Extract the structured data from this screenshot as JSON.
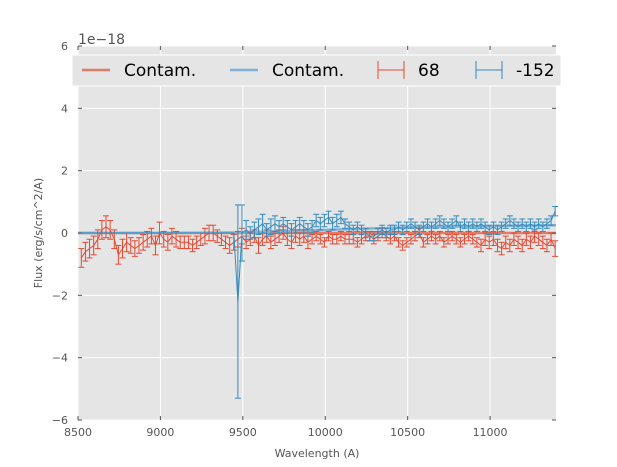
{
  "chart_data": {
    "type": "line",
    "title": "",
    "xlabel": "Wavelength (A)",
    "ylabel": "Flux (erg/s/cm^2/A)",
    "y_offset_label": "1e−18",
    "xlim": [
      8500,
      11400
    ],
    "ylim": [
      -6,
      6
    ],
    "x_ticks": [
      "8500",
      "9000",
      "9500",
      "10000",
      "10500",
      "11000"
    ],
    "y_ticks": [
      "−6",
      "−4",
      "−2",
      "0",
      "2",
      "4",
      "6"
    ],
    "y_tick_values": [
      -6,
      -4,
      -2,
      0,
      2,
      4,
      6
    ],
    "x_tick_values": [
      8500,
      9000,
      9500,
      10000,
      10500,
      11000
    ],
    "grid": true,
    "background": "#e5e5e5",
    "legend_position": "top",
    "legend": [
      {
        "label": "Contam.",
        "kind": "line",
        "color": "#e27c6a"
      },
      {
        "label": "Contam.",
        "kind": "line",
        "color": "#7db4d6"
      },
      {
        "label": "68",
        "kind": "errorbar",
        "color": "#e24a33"
      },
      {
        "label": "-152",
        "kind": "errorbar",
        "color": "#348abd"
      }
    ],
    "series": [
      {
        "name": "Contam.",
        "kind": "contamination",
        "color": "#e27c6a",
        "x": [
          8500,
          9000,
          9500,
          10000,
          10500,
          11000,
          11400
        ],
        "y": [
          0.0,
          0.0,
          0.0,
          0.0,
          0.0,
          0.0,
          0.0
        ]
      },
      {
        "name": "Contam.",
        "kind": "contamination",
        "color": "#7db4d6",
        "x": [
          8500,
          9000,
          9500,
          10000,
          10500,
          11000,
          11400
        ],
        "y": [
          0.0,
          0.0,
          0.02,
          0.1,
          0.18,
          0.22,
          0.25
        ]
      },
      {
        "name": "68",
        "kind": "errorbar",
        "color": "#e24a33",
        "x": [
          8520,
          8545,
          8570,
          8595,
          8620,
          8645,
          8670,
          8695,
          8720,
          8745,
          8770,
          8795,
          8820,
          8845,
          8870,
          8895,
          8920,
          8945,
          8970,
          8995,
          9020,
          9045,
          9070,
          9095,
          9120,
          9145,
          9170,
          9195,
          9220,
          9245,
          9270,
          9295,
          9320,
          9345,
          9370,
          9395,
          9420,
          9445,
          9470,
          9495,
          9520,
          9545,
          9570,
          9595,
          9620,
          9645,
          9670,
          9695,
          9720,
          9745,
          9770,
          9795,
          9820,
          9845,
          9870,
          9895,
          9920,
          9945,
          9970,
          9995,
          10020,
          10045,
          10070,
          10095,
          10120,
          10145,
          10170,
          10195,
          10220,
          10245,
          10270,
          10295,
          10320,
          10345,
          10370,
          10395,
          10420,
          10445,
          10470,
          10495,
          10520,
          10545,
          10570,
          10595,
          10620,
          10645,
          10670,
          10695,
          10720,
          10745,
          10770,
          10795,
          10820,
          10845,
          10870,
          10895,
          10920,
          10945,
          10970,
          10995,
          11020,
          11045,
          11070,
          11095,
          11120,
          11145,
          11170,
          11195,
          11220,
          11245,
          11270,
          11295,
          11320,
          11345,
          11370,
          11395
        ],
        "y": [
          -0.8,
          -0.6,
          -0.5,
          -0.4,
          -0.2,
          0.1,
          0.2,
          0.1,
          -0.2,
          -0.7,
          -0.5,
          -0.3,
          -0.4,
          -0.5,
          -0.4,
          -0.3,
          -0.2,
          -0.1,
          -0.4,
          0.0,
          -0.2,
          -0.3,
          -0.1,
          -0.2,
          -0.3,
          -0.3,
          -0.3,
          -0.4,
          -0.3,
          -0.2,
          -0.1,
          0.0,
          0.0,
          -0.1,
          -0.2,
          -0.3,
          -0.4,
          -0.3,
          -0.2,
          -0.1,
          -0.3,
          -0.2,
          -0.1,
          -0.4,
          -0.2,
          -0.1,
          -0.3,
          -0.2,
          -0.1,
          0.0,
          -0.2,
          -0.3,
          -0.1,
          -0.2,
          -0.1,
          -0.3,
          -0.2,
          -0.1,
          -0.2,
          -0.3,
          -0.1,
          -0.2,
          -0.2,
          -0.1,
          -0.2,
          -0.2,
          -0.2,
          -0.3,
          -0.2,
          -0.1,
          -0.1,
          -0.2,
          -0.1,
          0.0,
          -0.1,
          -0.2,
          -0.1,
          -0.3,
          -0.4,
          -0.3,
          -0.2,
          -0.1,
          0.0,
          -0.3,
          -0.2,
          -0.1,
          -0.2,
          -0.1,
          -0.3,
          -0.2,
          -0.1,
          -0.2,
          -0.3,
          -0.2,
          -0.1,
          -0.2,
          -0.3,
          -0.4,
          -0.2,
          -0.3,
          -0.2,
          -0.4,
          -0.5,
          -0.3,
          -0.4,
          -0.2,
          -0.3,
          -0.4,
          -0.2,
          -0.3,
          -0.1,
          -0.2,
          -0.3,
          -0.4,
          -0.2,
          -0.5
        ],
        "err": [
          0.3,
          0.3,
          0.3,
          0.3,
          0.3,
          0.3,
          0.35,
          0.3,
          0.3,
          0.3,
          0.3,
          0.3,
          0.25,
          0.25,
          0.25,
          0.25,
          0.25,
          0.25,
          0.3,
          0.35,
          0.25,
          0.25,
          0.25,
          0.25,
          0.2,
          0.2,
          0.2,
          0.2,
          0.2,
          0.2,
          0.25,
          0.25,
          0.25,
          0.2,
          0.2,
          0.2,
          0.25,
          0.25,
          0.25,
          0.25,
          0.2,
          0.2,
          0.2,
          0.25,
          0.2,
          0.2,
          0.2,
          0.2,
          0.2,
          0.2,
          0.2,
          0.2,
          0.2,
          0.2,
          0.2,
          0.2,
          0.15,
          0.15,
          0.15,
          0.15,
          0.15,
          0.15,
          0.15,
          0.15,
          0.15,
          0.15,
          0.15,
          0.15,
          0.15,
          0.15,
          0.15,
          0.15,
          0.15,
          0.15,
          0.15,
          0.15,
          0.15,
          0.15,
          0.15,
          0.15,
          0.15,
          0.15,
          0.15,
          0.15,
          0.15,
          0.15,
          0.15,
          0.15,
          0.15,
          0.15,
          0.15,
          0.15,
          0.15,
          0.15,
          0.15,
          0.15,
          0.15,
          0.2,
          0.2,
          0.2,
          0.2,
          0.2,
          0.2,
          0.2,
          0.2,
          0.2,
          0.2,
          0.2,
          0.2,
          0.2,
          0.2,
          0.2,
          0.2,
          0.2,
          0.2,
          0.25
        ]
      },
      {
        "name": "-152",
        "kind": "errorbar",
        "color": "#348abd",
        "x": [
          8520,
          8545,
          8570,
          8595,
          8620,
          8645,
          8670,
          8695,
          8720,
          8745,
          8770,
          8795,
          8820,
          8845,
          8870,
          8895,
          8920,
          8945,
          8970,
          8995,
          9020,
          9045,
          9070,
          9095,
          9120,
          9145,
          9170,
          9195,
          9220,
          9245,
          9270,
          9295,
          9320,
          9345,
          9370,
          9395,
          9420,
          9445,
          9470,
          9495,
          9520,
          9545,
          9570,
          9595,
          9620,
          9645,
          9670,
          9695,
          9720,
          9745,
          9770,
          9795,
          9820,
          9845,
          9870,
          9895,
          9920,
          9945,
          9970,
          9995,
          10020,
          10045,
          10070,
          10095,
          10120,
          10145,
          10170,
          10195,
          10220,
          10245,
          10270,
          10295,
          10320,
          10345,
          10370,
          10395,
          10420,
          10445,
          10470,
          10495,
          10520,
          10545,
          10570,
          10595,
          10620,
          10645,
          10670,
          10695,
          10720,
          10745,
          10770,
          10795,
          10820,
          10845,
          10870,
          10895,
          10920,
          10945,
          10970,
          10995,
          11020,
          11045,
          11070,
          11095,
          11120,
          11145,
          11170,
          11195,
          11220,
          11245,
          11270,
          11295,
          11320,
          11345,
          11370,
          11395
        ],
        "y": [
          0.0,
          0.0,
          0.0,
          0.0,
          0.0,
          0.0,
          0.0,
          0.0,
          0.0,
          0.0,
          0.0,
          0.0,
          0.0,
          0.0,
          0.0,
          0.0,
          0.0,
          0.0,
          0.0,
          0.0,
          0.0,
          0.0,
          0.0,
          0.0,
          0.0,
          0.0,
          0.0,
          0.0,
          0.0,
          0.0,
          0.0,
          0.0,
          0.0,
          0.0,
          0.0,
          0.0,
          0.0,
          0.0,
          -2.2,
          0.0,
          0.1,
          0.0,
          0.1,
          0.2,
          0.3,
          0.1,
          0.2,
          0.3,
          0.2,
          0.3,
          0.2,
          0.1,
          0.2,
          0.3,
          0.2,
          0.1,
          0.2,
          0.4,
          0.3,
          0.4,
          0.5,
          0.3,
          0.4,
          0.5,
          0.3,
          0.2,
          0.1,
          0.2,
          0.1,
          0.0,
          -0.1,
          -0.1,
          0.0,
          0.1,
          0.0,
          0.1,
          0.1,
          0.2,
          0.1,
          0.2,
          0.3,
          0.2,
          0.1,
          0.2,
          0.3,
          0.2,
          0.3,
          0.4,
          0.3,
          0.2,
          0.3,
          0.4,
          0.2,
          0.3,
          0.2,
          0.3,
          0.2,
          0.3,
          0.2,
          0.1,
          0.2,
          0.1,
          0.2,
          0.3,
          0.4,
          0.3,
          0.2,
          0.3,
          0.2,
          0.3,
          0.2,
          0.3,
          0.2,
          0.3,
          0.4,
          0.7
        ],
        "err": [
          0.0,
          0.0,
          0.0,
          0.0,
          0.0,
          0.0,
          0.0,
          0.0,
          0.0,
          0.0,
          0.0,
          0.0,
          0.0,
          0.0,
          0.0,
          0.0,
          0.0,
          0.0,
          0.0,
          0.0,
          0.0,
          0.0,
          0.0,
          0.0,
          0.0,
          0.0,
          0.0,
          0.0,
          0.0,
          0.0,
          0.0,
          0.0,
          0.0,
          0.0,
          0.0,
          0.0,
          0.0,
          0.0,
          3.1,
          0.9,
          0.3,
          0.2,
          0.25,
          0.25,
          0.3,
          0.2,
          0.25,
          0.25,
          0.2,
          0.2,
          0.2,
          0.2,
          0.2,
          0.2,
          0.2,
          0.2,
          0.2,
          0.2,
          0.2,
          0.2,
          0.2,
          0.2,
          0.2,
          0.2,
          0.15,
          0.15,
          0.15,
          0.15,
          0.15,
          0.15,
          0.15,
          0.15,
          0.15,
          0.15,
          0.15,
          0.15,
          0.15,
          0.15,
          0.15,
          0.15,
          0.15,
          0.15,
          0.15,
          0.15,
          0.15,
          0.15,
          0.15,
          0.15,
          0.15,
          0.15,
          0.15,
          0.15,
          0.15,
          0.15,
          0.15,
          0.15,
          0.15,
          0.15,
          0.15,
          0.15,
          0.15,
          0.15,
          0.15,
          0.15,
          0.15,
          0.15,
          0.15,
          0.15,
          0.15,
          0.15,
          0.15,
          0.15,
          0.15,
          0.15,
          0.15,
          0.15
        ]
      }
    ]
  }
}
